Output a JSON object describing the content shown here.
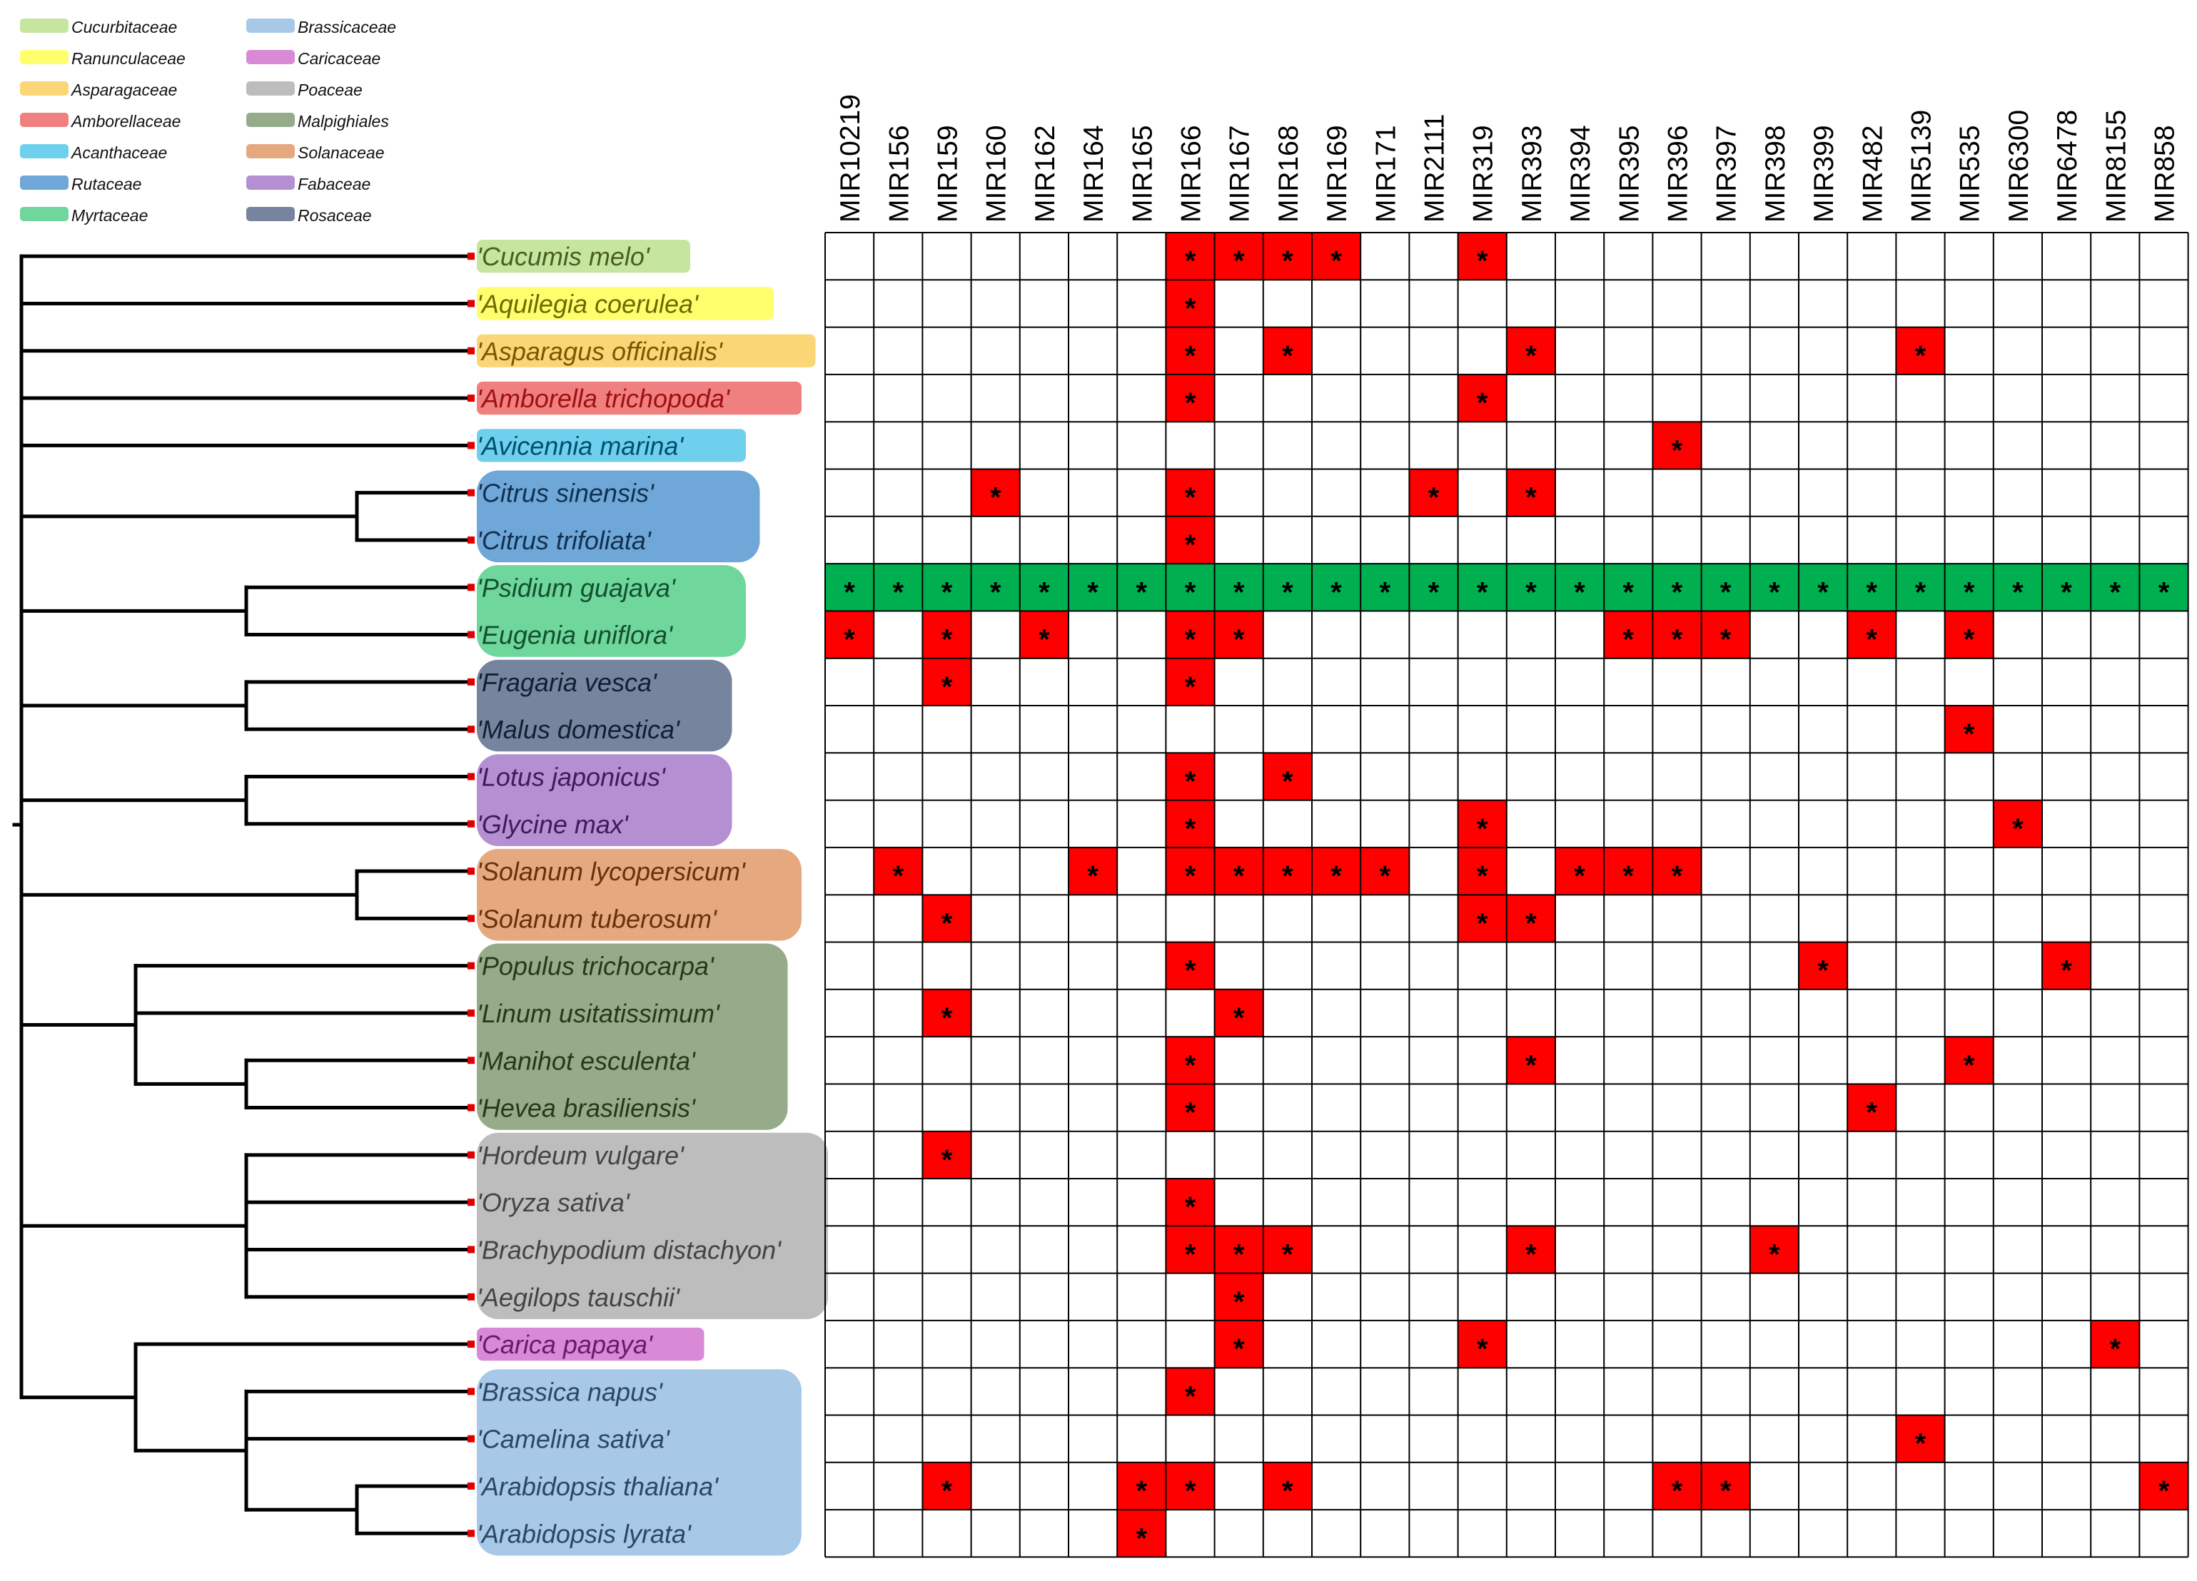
{
  "families": [
    {
      "id": "cuc",
      "name": "Cucurbitaceae",
      "color": "#c6e6a0",
      "text_color": "#4a5e22"
    },
    {
      "id": "ran",
      "name": "Ranunculaceae",
      "color": "#ffff6e",
      "text_color": "#6b6b00"
    },
    {
      "id": "asp",
      "name": "Asparagaceae",
      "color": "#fbd676",
      "text_color": "#7a5800"
    },
    {
      "id": "amb",
      "name": "Amborellaceae",
      "color": "#f08080",
      "text_color": "#a01010"
    },
    {
      "id": "aca",
      "name": "Acanthaceae",
      "color": "#6fd0ee",
      "text_color": "#004f6e"
    },
    {
      "id": "rut",
      "name": "Rutaceae",
      "color": "#6ea7d8",
      "text_color": "#12304f"
    },
    {
      "id": "myr",
      "name": "Myrtaceae",
      "color": "#6fd69c",
      "text_color": "#13502e"
    },
    {
      "id": "bra",
      "name": "Brassicaceae",
      "color": "#a8c8e8",
      "text_color": "#2b4766"
    },
    {
      "id": "car",
      "name": "Caricaceae",
      "color": "#d98ad6",
      "text_color": "#6a1a6a"
    },
    {
      "id": "poa",
      "name": "Poaceae",
      "color": "#bdbdbd",
      "text_color": "#444444"
    },
    {
      "id": "mal",
      "name": "Malpighiales",
      "color": "#95ab8a",
      "text_color": "#243a18"
    },
    {
      "id": "sol",
      "name": "Solanaceae",
      "color": "#e6a97f",
      "text_color": "#6a300a"
    },
    {
      "id": "fab",
      "name": "Fabaceae",
      "color": "#b48fd2",
      "text_color": "#3e1b5c"
    },
    {
      "id": "ros",
      "name": "Rosaceae",
      "color": "#76849e",
      "text_color": "#141e33"
    }
  ],
  "mirnas": [
    "MIR10219",
    "MIR156",
    "MIR159",
    "MIR160",
    "MIR162",
    "MIR164",
    "MIR165",
    "MIR166",
    "MIR167",
    "MIR168",
    "MIR169",
    "MIR171",
    "MIR2111",
    "MIR319",
    "MIR393",
    "MIR394",
    "MIR395",
    "MIR396",
    "MIR397",
    "MIR398",
    "MIR399",
    "MIR482",
    "MIR5139",
    "MIR535",
    "MIR6300",
    "MIR6478",
    "MIR8155",
    "MIR858"
  ],
  "species": [
    {
      "name": "'Cucumis melo'",
      "family": "cuc",
      "hits": [
        7,
        8,
        9,
        10,
        13
      ]
    },
    {
      "name": "'Aquilegia coerulea'",
      "family": "ran",
      "hits": [
        7
      ]
    },
    {
      "name": "'Asparagus officinalis'",
      "family": "asp",
      "hits": [
        7,
        9,
        14,
        22
      ]
    },
    {
      "name": "'Amborella trichopoda'",
      "family": "amb",
      "hits": [
        7,
        13
      ]
    },
    {
      "name": "'Avicennia marina'",
      "family": "aca",
      "hits": [
        17
      ]
    },
    {
      "name": "'Citrus sinensis'",
      "family": "rut",
      "hits": [
        3,
        7,
        12,
        14
      ]
    },
    {
      "name": "'Citrus trifoliata'",
      "family": "rut",
      "hits": [
        7
      ]
    },
    {
      "name": "'Psidium guajava'",
      "family": "myr",
      "all": true,
      "hits": [
        0,
        1,
        2,
        3,
        4,
        5,
        6,
        7,
        8,
        9,
        10,
        11,
        12,
        13,
        14,
        15,
        16,
        17,
        18,
        19,
        20,
        21,
        22,
        23,
        24,
        25,
        26,
        27
      ]
    },
    {
      "name": "'Eugenia uniflora'",
      "family": "myr",
      "hits": [
        0,
        2,
        4,
        7,
        8,
        16,
        17,
        18,
        21,
        23
      ]
    },
    {
      "name": "'Fragaria vesca'",
      "family": "ros",
      "hits": [
        2,
        7
      ]
    },
    {
      "name": "'Malus domestica'",
      "family": "ros",
      "hits": [
        23
      ]
    },
    {
      "name": "'Lotus japonicus'",
      "family": "fab",
      "hits": [
        7,
        9
      ]
    },
    {
      "name": "'Glycine max'",
      "family": "fab",
      "hits": [
        7,
        13,
        24
      ]
    },
    {
      "name": "'Solanum lycopersicum'",
      "family": "sol",
      "hits": [
        1,
        5,
        7,
        8,
        9,
        10,
        11,
        13,
        15,
        16,
        17
      ]
    },
    {
      "name": "'Solanum tuberosum'",
      "family": "sol",
      "hits": [
        2,
        13,
        14
      ]
    },
    {
      "name": "'Populus trichocarpa'",
      "family": "mal",
      "hits": [
        7,
        20,
        25
      ]
    },
    {
      "name": "'Linum usitatissimum'",
      "family": "mal",
      "hits": [
        2,
        8
      ]
    },
    {
      "name": "'Manihot esculenta'",
      "family": "mal",
      "hits": [
        7,
        14,
        23
      ]
    },
    {
      "name": "'Hevea brasiliensis'",
      "family": "mal",
      "hits": [
        7,
        21
      ]
    },
    {
      "name": "'Hordeum vulgare'",
      "family": "poa",
      "hits": [
        2
      ]
    },
    {
      "name": "'Oryza sativa'",
      "family": "poa",
      "hits": [
        7
      ]
    },
    {
      "name": "'Brachypodium distachyon'",
      "family": "poa",
      "hits": [
        7,
        8,
        9,
        14,
        19
      ]
    },
    {
      "name": "'Aegilops tauschii'",
      "family": "poa",
      "hits": [
        8
      ]
    },
    {
      "name": "'Carica papaya'",
      "family": "car",
      "hits": [
        8,
        13,
        26
      ]
    },
    {
      "name": "'Brassica napus'",
      "family": "bra",
      "hits": [
        7
      ]
    },
    {
      "name": "'Camelina sativa'",
      "family": "bra",
      "hits": [
        22
      ]
    },
    {
      "name": "'Arabidopsis thaliana'",
      "family": "bra",
      "hits": [
        2,
        6,
        7,
        9,
        17,
        18,
        27
      ]
    },
    {
      "name": "'Arabidopsis lyrata'",
      "family": "bra",
      "hits": [
        6
      ]
    }
  ],
  "marker": "*",
  "colors": {
    "hit": "#ff0000",
    "highlight_row": "#00b050",
    "grid": "#000000",
    "tree": "#000000",
    "leaf_dot": "#e00000"
  }
}
